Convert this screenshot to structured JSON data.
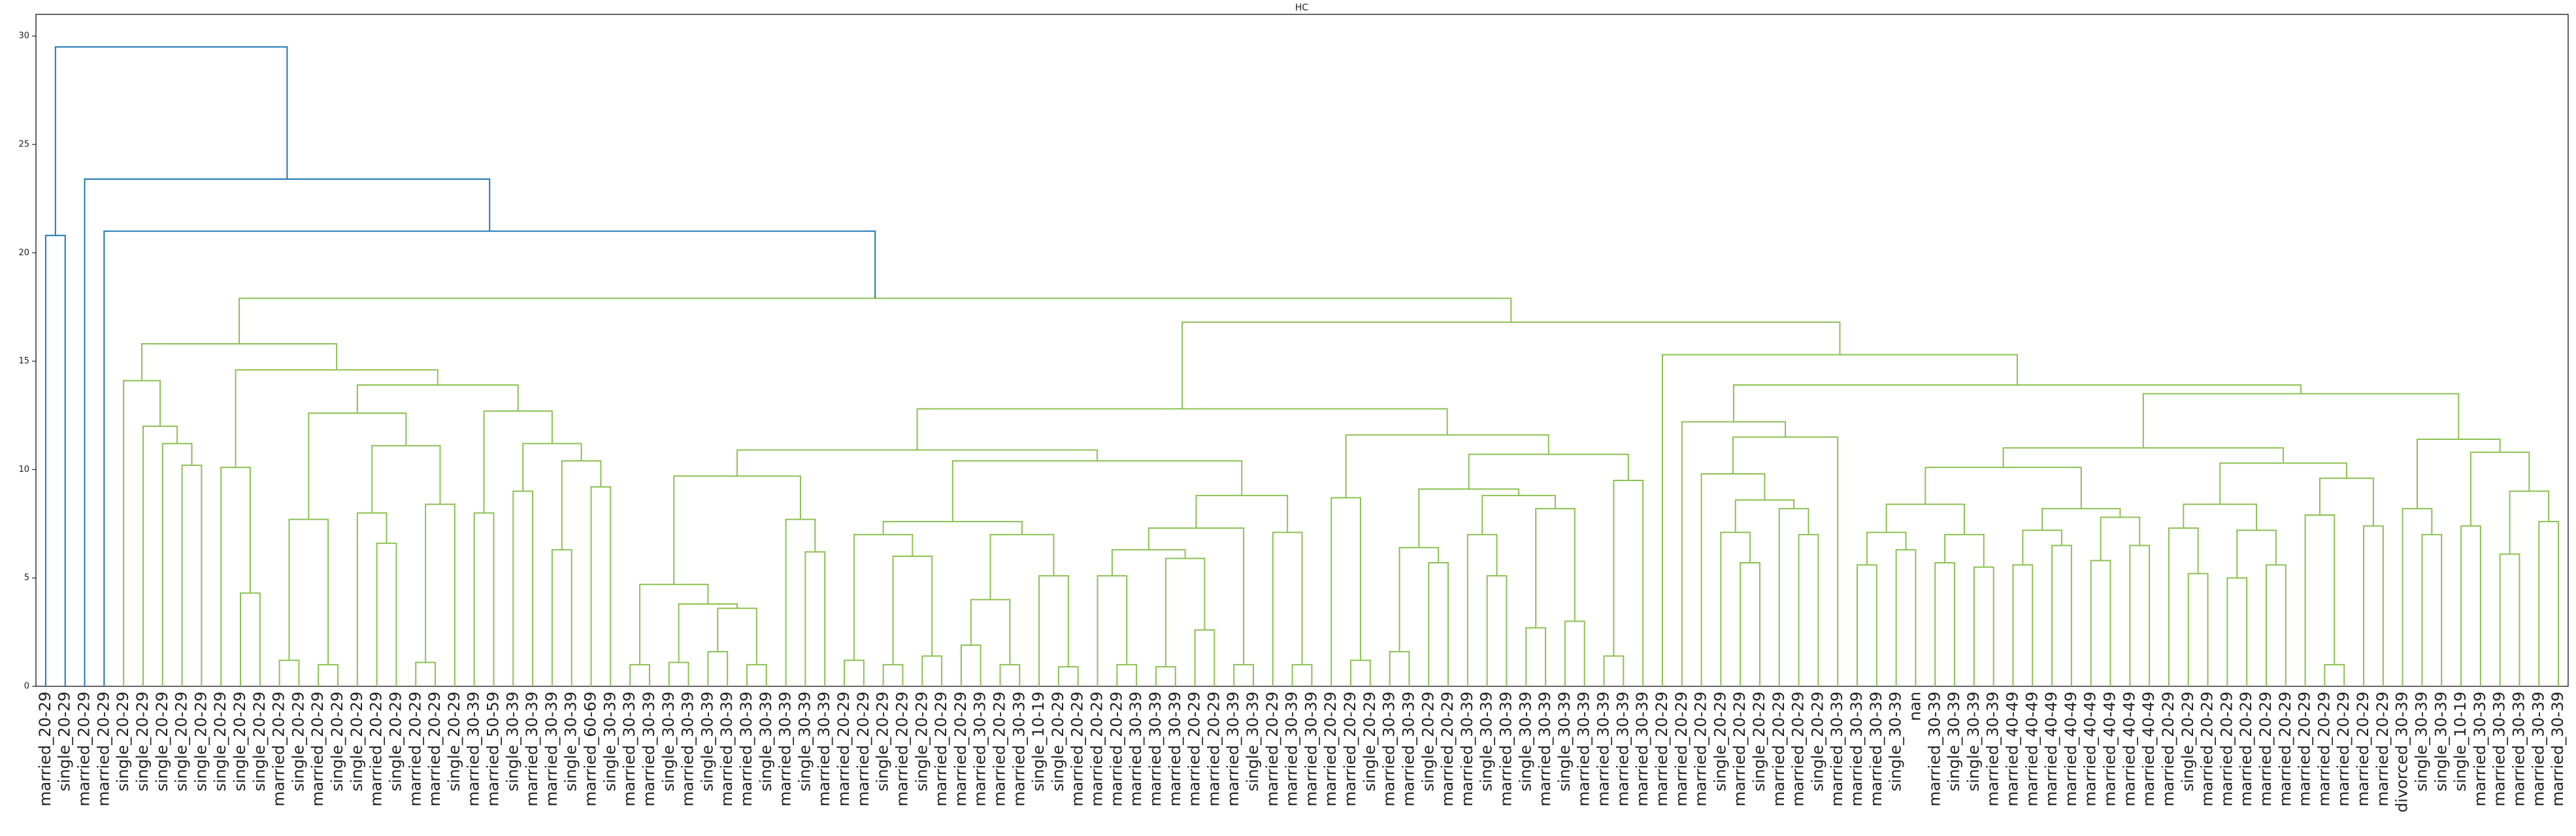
{
  "chart_data": {
    "type": "dendrogram",
    "title": "HC",
    "ylim": [
      0,
      31
    ],
    "yticks": [
      0,
      5,
      10,
      15,
      20,
      25,
      30
    ],
    "colors": {
      "above": "#1f77b4",
      "below": "#8cc152"
    },
    "tree": [
      29.5,
      [
        20.8,
        "married_20-29",
        "single_20-29"
      ],
      [
        23.4,
        "married_20-29",
        [
          21.0,
          "married_20-29",
          [
            17.9,
            [
              15.8,
              [
                14.1,
                "single_20-29",
                [
                  12.0,
                  "single_20-29",
                  [
                    11.2,
                    "single_20-29",
                    [
                      10.2,
                      "single_20-29",
                      "single_20-29"
                    ]
                  ]
                ]
              ],
              [
                14.6,
                [
                  10.1,
                  "single_20-29",
                  [
                    4.3,
                    "single_20-29",
                    "single_20-29"
                  ]
                ],
                [
                  13.9,
                  [
                    12.6,
                    [
                      7.7,
                      [
                        1.2,
                        "married_20-29",
                        "single_20-29"
                      ],
                      [
                        1.0,
                        "married_20-29",
                        "single_20-29"
                      ]
                    ],
                    [
                      11.1,
                      [
                        8.0,
                        "single_20-29",
                        [
                          6.6,
                          "married_20-29",
                          "single_20-29"
                        ]
                      ],
                      [
                        8.4,
                        [
                          1.1,
                          "married_20-29",
                          "married_20-29"
                        ],
                        "single_20-29"
                      ]
                    ]
                  ],
                  [
                    12.7,
                    [
                      8.0,
                      "married_30-39",
                      "married_50-59"
                    ],
                    [
                      11.2,
                      [
                        9.0,
                        "single_30-39",
                        "married_30-39"
                      ],
                      [
                        10.4,
                        [
                          6.3,
                          "married_30-39",
                          "single_30-39"
                        ],
                        [
                          9.2,
                          "married_60-69",
                          "single_30-39"
                        ]
                      ]
                    ]
                  ]
                ]
              ]
            ],
            [
              16.8,
              [
                12.8,
                [
                  10.9,
                  [
                    9.7,
                    [
                      4.7,
                      [
                        1.0,
                        "married_30-39",
                        "married_30-39"
                      ],
                      [
                        3.8,
                        [
                          1.1,
                          "single_30-39",
                          "married_30-39"
                        ],
                        [
                          3.6,
                          [
                            1.6,
                            "single_30-39",
                            "married_30-39"
                          ],
                          [
                            1.0,
                            "married_30-39",
                            "single_30-39"
                          ]
                        ]
                      ]
                    ],
                    [
                      7.7,
                      "married_30-39",
                      [
                        6.2,
                        "single_30-39",
                        "married_30-39"
                      ]
                    ]
                  ],
                  [
                    10.4,
                    [
                      7.6,
                      [
                        7.0,
                        [
                          1.2,
                          "married_20-29",
                          "married_20-29"
                        ],
                        [
                          6.0,
                          [
                            1.0,
                            "single_20-29",
                            "married_20-29"
                          ],
                          [
                            1.4,
                            "single_20-29",
                            "married_20-29"
                          ]
                        ]
                      ],
                      [
                        7.0,
                        [
                          4.0,
                          [
                            1.9,
                            "married_20-29",
                            "married_30-39"
                          ],
                          [
                            1.0,
                            "married_20-29",
                            "married_30-39"
                          ]
                        ],
                        [
                          5.1,
                          "single_10-19",
                          [
                            0.9,
                            "single_20-29",
                            "married_20-29"
                          ]
                        ]
                      ]
                    ],
                    [
                      8.8,
                      [
                        7.3,
                        [
                          6.3,
                          [
                            5.1,
                            "married_20-29",
                            [
                              1.0,
                              "married_20-29",
                              "married_30-39"
                            ]
                          ],
                          [
                            5.9,
                            [
                              0.9,
                              "married_30-39",
                              "married_30-39"
                            ],
                            [
                              2.6,
                              "married_20-29",
                              "married_20-29"
                            ]
                          ]
                        ],
                        [
                          1.0,
                          "married_30-39",
                          "single_30-39"
                        ]
                      ],
                      [
                        7.1,
                        "married_20-29",
                        [
                          1.0,
                          "married_30-39",
                          "married_30-39"
                        ]
                      ]
                    ]
                  ]
                ],
                [
                  11.6,
                  [
                    8.7,
                    "married_20-29",
                    [
                      1.2,
                      "married_20-29",
                      "single_20-29"
                    ]
                  ],
                  [
                    10.7,
                    [
                      9.1,
                      [
                        6.4,
                        [
                          1.6,
                          "married_30-39",
                          "married_30-39"
                        ],
                        [
                          5.7,
                          "single_20-29",
                          "married_20-29"
                        ]
                      ],
                      [
                        8.8,
                        [
                          7.0,
                          "married_30-39",
                          [
                            5.1,
                            "single_30-39",
                            "married_30-39"
                          ]
                        ],
                        [
                          8.2,
                          [
                            2.7,
                            "single_30-39",
                            "married_30-39"
                          ],
                          [
                            3.0,
                            "single_30-39",
                            "married_30-39"
                          ]
                        ]
                      ]
                    ],
                    [
                      9.5,
                      [
                        1.4,
                        "married_30-39",
                        "married_30-39"
                      ],
                      "married_30-39"
                    ]
                  ]
                ]
              ],
              [
                15.3,
                "married_20-29",
                [
                  13.9,
                  [
                    12.2,
                    "married_20-29",
                    [
                      11.5,
                      [
                        9.8,
                        "married_20-29",
                        [
                          8.6,
                          [
                            7.1,
                            "single_20-29",
                            [
                              5.7,
                              "married_20-29",
                              "single_20-29"
                            ]
                          ],
                          [
                            8.2,
                            "married_20-29",
                            [
                              7.0,
                              "married_20-29",
                              "single_20-29"
                            ]
                          ]
                        ]
                      ],
                      "married_30-39"
                    ]
                  ],
                  [
                    13.5,
                    [
                      11.0,
                      [
                        10.1,
                        [
                          8.4,
                          [
                            7.1,
                            [
                              5.6,
                              "married_30-39",
                              "married_30-39"
                            ],
                            [
                              6.3,
                              "single_30-39",
                              "nan"
                            ]
                          ],
                          [
                            7.0,
                            [
                              5.7,
                              "married_30-39",
                              "single_30-39"
                            ],
                            [
                              5.5,
                              "single_30-39",
                              "married_30-39"
                            ]
                          ]
                        ],
                        [
                          8.2,
                          [
                            7.2,
                            [
                              5.6,
                              "married_40-49",
                              "married_40-49"
                            ],
                            [
                              6.5,
                              "married_40-49",
                              "married_40-49"
                            ]
                          ],
                          [
                            7.8,
                            [
                              5.8,
                              "married_40-49",
                              "married_40-49"
                            ],
                            [
                              6.5,
                              "married_40-49",
                              "married_40-49"
                            ]
                          ]
                        ]
                      ],
                      [
                        10.3,
                        [
                          8.4,
                          [
                            7.3,
                            "married_20-29",
                            [
                              5.2,
                              "single_20-29",
                              "married_20-29"
                            ]
                          ],
                          [
                            7.2,
                            [
                              5.0,
                              "married_20-29",
                              "married_20-29"
                            ],
                            [
                              5.6,
                              "married_20-29",
                              "married_20-29"
                            ]
                          ]
                        ],
                        [
                          9.6,
                          [
                            7.9,
                            "married_20-29",
                            [
                              1.0,
                              "married_20-29",
                              "married_20-29"
                            ]
                          ],
                          [
                            7.4,
                            "married_20-29",
                            "married_20-29"
                          ]
                        ]
                      ]
                    ],
                    [
                      11.4,
                      [
                        8.2,
                        "divorced_30-39",
                        [
                          7.0,
                          "single_30-39",
                          "single_30-39"
                        ]
                      ],
                      [
                        10.8,
                        [
                          7.4,
                          "single_10-19",
                          "married_30-39"
                        ],
                        [
                          9.0,
                          [
                            6.1,
                            "married_30-39",
                            "married_30-39"
                          ],
                          [
                            7.6,
                            "married_30-39",
                            "married_30-39"
                          ]
                        ]
                      ]
                    ]
                  ]
                ]
              ]
            ]
          ]
        ]
      ]
    ]
  }
}
